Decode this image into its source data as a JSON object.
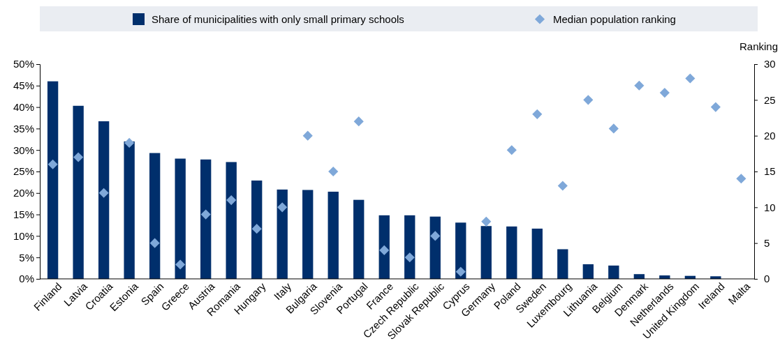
{
  "chart_data": {
    "type": "bar",
    "categories": [
      "Finland",
      "Latvia",
      "Croatia",
      "Estonia",
      "Spain",
      "Greece",
      "Austria",
      "Romania",
      "Hungary",
      "Italy",
      "Bulgaria",
      "Slovenia",
      "Portugal",
      "France",
      "Czech Republic",
      "Slovak Republic",
      "Cyprus",
      "Germany",
      "Poland",
      "Sweden",
      "Luxembourg",
      "Lithuania",
      "Belgium",
      "Denmark",
      "Netherlands",
      "United Kingdom",
      "Ireland",
      "Malta"
    ],
    "series": [
      {
        "name": "Share of municipalities with only small primary schools",
        "color": "#002f6c",
        "values": [
          46,
          40.3,
          36.7,
          32,
          29.3,
          28,
          27.8,
          27.2,
          22.9,
          20.8,
          20.7,
          20.3,
          18.4,
          14.8,
          14.8,
          14.5,
          13.1,
          12.3,
          12.2,
          11.7,
          6.9,
          3.4,
          3.1,
          1.1,
          0.8,
          0.7,
          0.6,
          null
        ]
      },
      {
        "name": "Median population ranking",
        "type": "scatter",
        "axis": "y2",
        "marker": "diamond",
        "color": "#7fa8d9",
        "values": [
          16,
          17,
          12,
          19,
          5,
          2,
          9,
          11,
          7,
          10,
          20,
          15,
          22,
          4,
          3,
          6,
          1,
          8,
          18,
          23,
          13,
          25,
          21,
          27,
          26,
          28,
          24,
          14
        ]
      }
    ],
    "ylim": [
      0,
      50
    ],
    "yticks": [
      {
        "value": 0,
        "label": "0%"
      },
      {
        "value": 5,
        "label": "5%"
      },
      {
        "value": 10,
        "label": "10%"
      },
      {
        "value": 15,
        "label": "15%"
      },
      {
        "value": 20,
        "label": "20%"
      },
      {
        "value": 25,
        "label": "25%"
      },
      {
        "value": 30,
        "label": "30%"
      },
      {
        "value": 35,
        "label": "35%"
      },
      {
        "value": 40,
        "label": "40%"
      },
      {
        "value": 45,
        "label": "45%"
      },
      {
        "value": 50,
        "label": "50%"
      }
    ],
    "y2lim": [
      0,
      30
    ],
    "y2ticks": [
      0,
      5,
      10,
      15,
      20,
      25,
      30
    ],
    "y2label": "Ranking",
    "legend": "top",
    "grid": false
  }
}
